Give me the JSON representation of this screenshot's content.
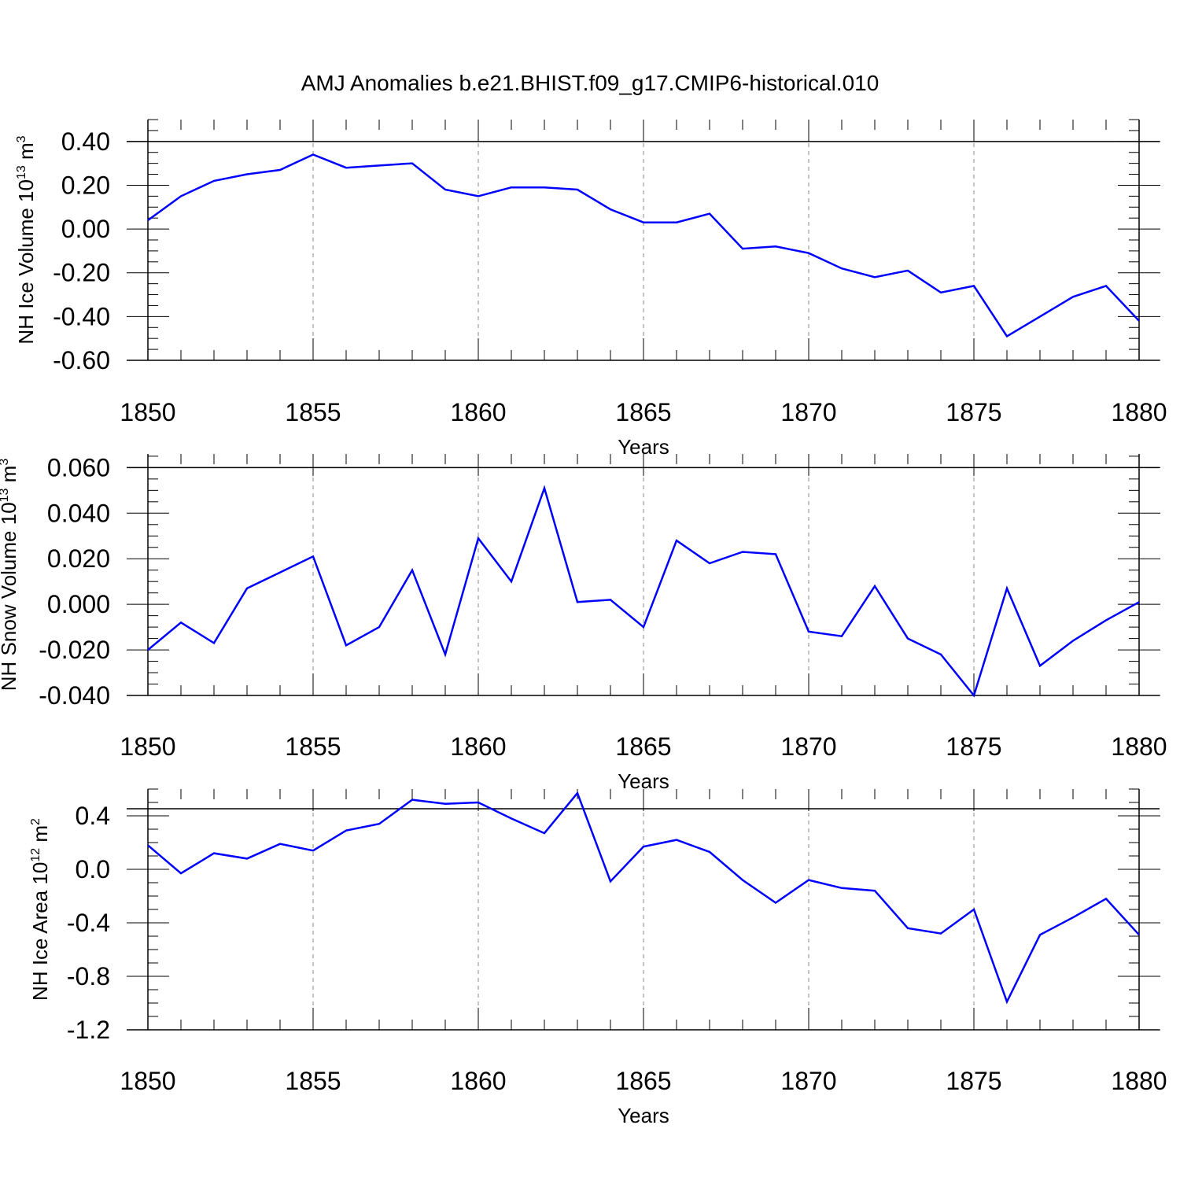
{
  "title": "AMJ Anomalies b.e21.BHIST.f09_g17.CMIP6-historical.010",
  "colors": {
    "series": "#0000ff",
    "axis": "#000000",
    "grid": "#888888"
  },
  "chart_data": [
    {
      "type": "line",
      "xlabel": "Years",
      "ylabel": {
        "text": "NH Ice Volume 10",
        "sup": "13",
        "unit": " m",
        "unit_sup": "3"
      },
      "xlim": [
        1850,
        1880
      ],
      "ylim": [
        -0.6,
        0.5
      ],
      "x_ticks": [
        1850,
        1855,
        1860,
        1865,
        1870,
        1875,
        1880
      ],
      "x_tick_labels": [
        "1850",
        "1855",
        "1860",
        "1865",
        "1870",
        "1875",
        "1880"
      ],
      "y_ticks": [
        -0.6,
        -0.4,
        -0.2,
        0.0,
        0.2,
        0.4
      ],
      "y_tick_labels": [
        "-0.60",
        "-0.40",
        "-0.20",
        "0.00",
        "0.20",
        "0.40"
      ],
      "y_minor_step": 0.05,
      "grid": "x-major-dashed",
      "x": [
        1850,
        1851,
        1852,
        1853,
        1854,
        1855,
        1856,
        1857,
        1858,
        1859,
        1860,
        1861,
        1862,
        1863,
        1864,
        1865,
        1866,
        1867,
        1868,
        1869,
        1870,
        1871,
        1872,
        1873,
        1874,
        1875,
        1876,
        1877,
        1878,
        1879,
        1880
      ],
      "values": [
        0.04,
        0.15,
        0.22,
        0.25,
        0.27,
        0.34,
        0.28,
        0.29,
        0.3,
        0.18,
        0.15,
        0.19,
        0.19,
        0.18,
        0.09,
        0.03,
        0.03,
        0.07,
        -0.09,
        -0.08,
        -0.11,
        -0.18,
        -0.22,
        -0.19,
        -0.29,
        -0.26,
        -0.49,
        -0.4,
        -0.31,
        -0.26,
        -0.42
      ]
    },
    {
      "type": "line",
      "xlabel": "Years",
      "ylabel": {
        "text": "NH Snow Volume 10",
        "sup": "13",
        "unit": " m",
        "unit_sup": "3"
      },
      "xlim": [
        1850,
        1880
      ],
      "ylim": [
        -0.04,
        0.066
      ],
      "x_ticks": [
        1850,
        1855,
        1860,
        1865,
        1870,
        1875,
        1880
      ],
      "x_tick_labels": [
        "1850",
        "1855",
        "1860",
        "1865",
        "1870",
        "1875",
        "1880"
      ],
      "y_ticks": [
        -0.04,
        -0.02,
        0.0,
        0.02,
        0.04,
        0.06
      ],
      "y_tick_labels": [
        "-0.040",
        "-0.020",
        "0.000",
        "0.020",
        "0.040",
        "0.060"
      ],
      "y_minor_step": 0.005,
      "grid": "x-major-dashed",
      "x": [
        1850,
        1851,
        1852,
        1853,
        1854,
        1855,
        1856,
        1857,
        1858,
        1859,
        1860,
        1861,
        1862,
        1863,
        1864,
        1865,
        1866,
        1867,
        1868,
        1869,
        1870,
        1871,
        1872,
        1873,
        1874,
        1875,
        1876,
        1877,
        1878,
        1879,
        1880
      ],
      "values": [
        -0.02,
        -0.008,
        -0.017,
        0.007,
        0.014,
        0.021,
        -0.018,
        -0.01,
        0.015,
        -0.022,
        0.029,
        0.01,
        0.051,
        0.001,
        0.002,
        -0.01,
        0.028,
        0.018,
        0.023,
        0.022,
        -0.012,
        -0.014,
        0.008,
        -0.015,
        -0.022,
        -0.04,
        0.007,
        -0.027,
        -0.016,
        -0.007,
        0.001
      ]
    },
    {
      "type": "line",
      "xlabel": "Years",
      "ylabel": {
        "text": "NH Ice Area 10",
        "sup": "12",
        "unit": " m",
        "unit_sup": "2"
      },
      "xlim": [
        1850,
        1880
      ],
      "ylim": [
        -1.2,
        0.6
      ],
      "x_ticks": [
        1850,
        1855,
        1860,
        1865,
        1870,
        1875,
        1880
      ],
      "x_tick_labels": [
        "1850",
        "1855",
        "1860",
        "1865",
        "1870",
        "1875",
        "1880"
      ],
      "y_ticks": [
        -1.2,
        -0.8,
        -0.4,
        0.0,
        0.4
      ],
      "y_tick_labels": [
        "-1.2",
        "-0.8",
        "-0.4",
        "0.0",
        "0.4"
      ],
      "y_minor_step": 0.1,
      "grid": "x-major-dashed",
      "x": [
        1850,
        1851,
        1852,
        1853,
        1854,
        1855,
        1856,
        1857,
        1858,
        1859,
        1860,
        1861,
        1862,
        1863,
        1864,
        1865,
        1866,
        1867,
        1868,
        1869,
        1870,
        1871,
        1872,
        1873,
        1874,
        1875,
        1876,
        1877,
        1878,
        1879,
        1880
      ],
      "values": [
        0.18,
        -0.03,
        0.12,
        0.08,
        0.19,
        0.14,
        0.29,
        0.34,
        0.52,
        0.49,
        0.5,
        0.38,
        0.27,
        0.57,
        -0.09,
        0.17,
        0.22,
        0.13,
        -0.08,
        -0.25,
        -0.08,
        -0.14,
        -0.16,
        -0.44,
        -0.48,
        -0.3,
        -0.99,
        -0.49,
        -0.36,
        -0.22,
        -0.49
      ]
    }
  ]
}
